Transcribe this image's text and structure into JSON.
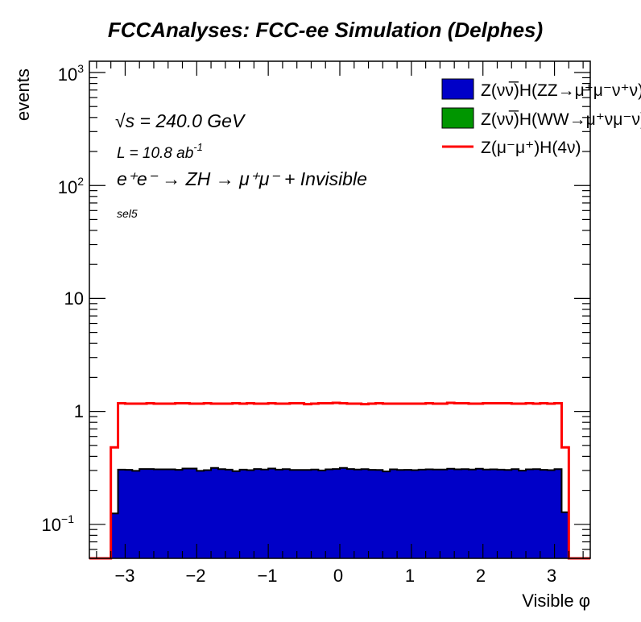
{
  "chart_data": {
    "type": "bar",
    "title": "FCCAnalyses: FCC-ee Simulation (Delphes)",
    "xlabel": "Visible φ",
    "ylabel": "events",
    "xlim": [
      -3.5,
      3.5
    ],
    "ylim": [
      0.05,
      1259
    ],
    "yscale": "log",
    "bin_edges_range": [
      -3.2,
      3.2
    ],
    "bin_width": 0.1,
    "x_ticks": [
      "−3",
      "−2",
      "−1",
      "0",
      "1",
      "2",
      "3"
    ],
    "x_tick_values": [
      -3,
      -2,
      -1,
      0,
      1,
      2,
      3
    ],
    "y_ticks": [
      {
        "value": 0.1,
        "base": "10",
        "exp": "−1"
      },
      {
        "value": 1,
        "base": "1",
        "exp": ""
      },
      {
        "value": 10,
        "base": "10",
        "exp": ""
      },
      {
        "value": 100,
        "base": "10",
        "exp": "2"
      },
      {
        "value": 1000,
        "base": "10",
        "exp": "3"
      }
    ],
    "annotations": {
      "sqrts": "s = 240.0 GeV",
      "sqrt_symbol": "√",
      "lumi": "L = 10.8 ab",
      "lumi_exp": "-1",
      "process": "e⁺e⁻ → ZH → μ⁺μ⁻ + Invisible",
      "selection": "sel5"
    },
    "legend_position": "top-right",
    "series": [
      {
        "name": "Z(νν̅)H(ZZ→μ⁺μ⁻ν⁺ν)",
        "style": "fill",
        "color": "#0000c8",
        "values": [
          0.125,
          0.305,
          0.304,
          0.298,
          0.309,
          0.309,
          0.307,
          0.307,
          0.307,
          0.304,
          0.312,
          0.312,
          0.298,
          0.302,
          0.316,
          0.308,
          0.305,
          0.296,
          0.305,
          0.302,
          0.309,
          0.306,
          0.312,
          0.305,
          0.308,
          0.303,
          0.303,
          0.303,
          0.306,
          0.3,
          0.307,
          0.309,
          0.316,
          0.309,
          0.306,
          0.308,
          0.304,
          0.303,
          0.294,
          0.307,
          0.303,
          0.304,
          0.302,
          0.305,
          0.307,
          0.306,
          0.306,
          0.311,
          0.307,
          0.308,
          0.306,
          0.311,
          0.306,
          0.307,
          0.305,
          0.303,
          0.308,
          0.299,
          0.307,
          0.308,
          0.304,
          0.302,
          0.308,
          0.128
        ]
      },
      {
        "name": "Z(νν̅)H(WW→μ⁺νμ⁻ν)",
        "style": "fill",
        "color": "#009600",
        "values": []
      },
      {
        "name": "Z(μ⁻μ⁺)H(4ν)",
        "style": "line",
        "color": "#ff0000",
        "values": [
          0.48,
          1.18,
          1.17,
          1.17,
          1.17,
          1.18,
          1.17,
          1.17,
          1.17,
          1.18,
          1.18,
          1.17,
          1.17,
          1.18,
          1.17,
          1.17,
          1.17,
          1.18,
          1.17,
          1.18,
          1.17,
          1.17,
          1.18,
          1.17,
          1.17,
          1.18,
          1.18,
          1.16,
          1.17,
          1.18,
          1.18,
          1.19,
          1.18,
          1.17,
          1.17,
          1.16,
          1.17,
          1.18,
          1.17,
          1.17,
          1.17,
          1.17,
          1.17,
          1.17,
          1.18,
          1.17,
          1.17,
          1.19,
          1.18,
          1.18,
          1.17,
          1.17,
          1.18,
          1.18,
          1.18,
          1.18,
          1.17,
          1.17,
          1.18,
          1.17,
          1.18,
          1.17,
          1.18,
          0.48
        ]
      }
    ]
  }
}
